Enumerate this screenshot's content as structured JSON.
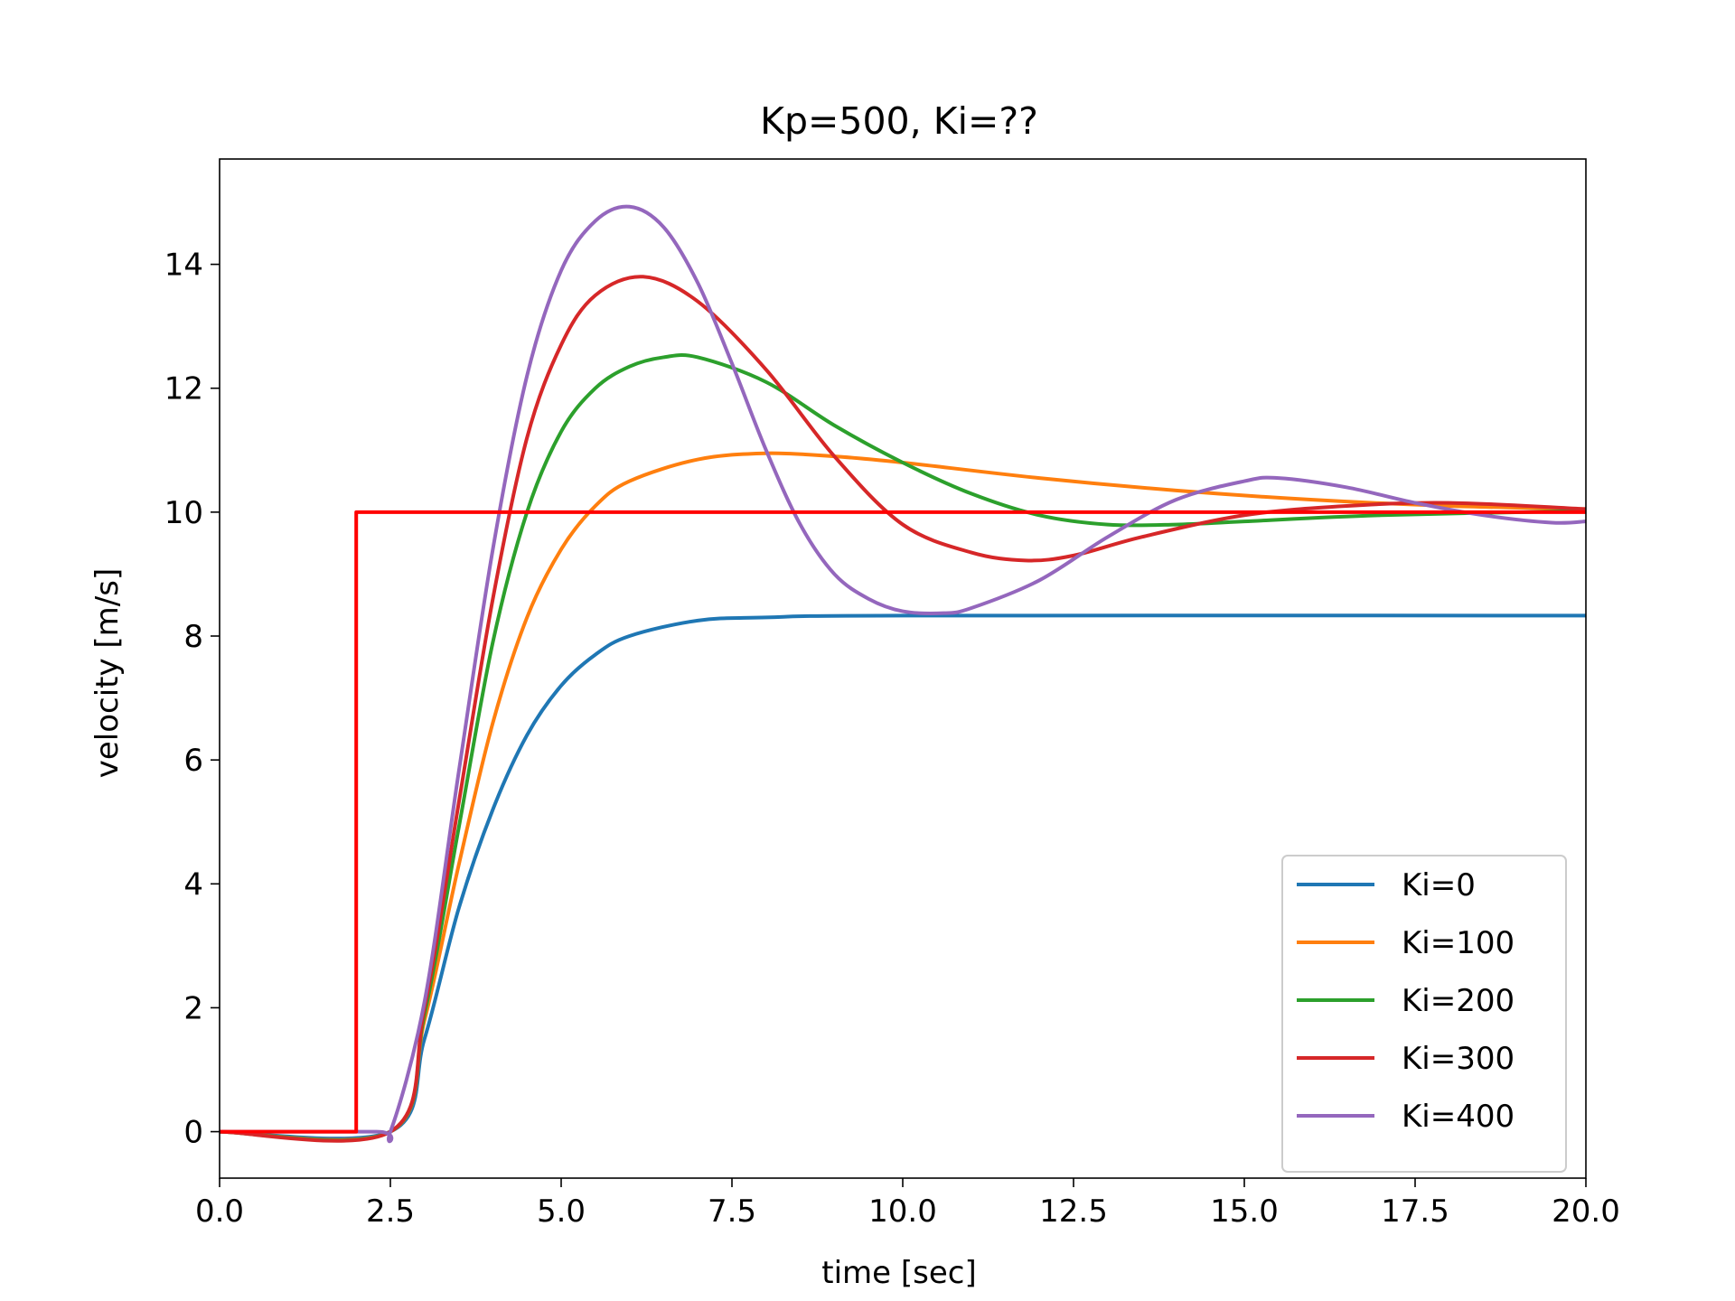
{
  "chart_data": {
    "type": "line",
    "title": "Kp=500, Ki=??",
    "xlabel": "time [sec]",
    "ylabel": "velocity [m/s]",
    "xlim": [
      0,
      20
    ],
    "ylim": [
      -0.75,
      15.7
    ],
    "xticks": [
      "0.0",
      "2.5",
      "5.0",
      "7.5",
      "10.0",
      "12.5",
      "15.0",
      "17.5",
      "20.0"
    ],
    "yticks": [
      "0",
      "2",
      "4",
      "6",
      "8",
      "10",
      "12",
      "14"
    ],
    "grid": false,
    "legend_position": "bottom-right",
    "series": [
      {
        "name": "Ki=0",
        "color": "#1f77b4",
        "points": [
          [
            0,
            0
          ],
          [
            2.5,
            0
          ],
          [
            3,
            1.5
          ],
          [
            3.5,
            3.6
          ],
          [
            4,
            5.2
          ],
          [
            4.5,
            6.4
          ],
          [
            5,
            7.2
          ],
          [
            5.5,
            7.7
          ],
          [
            6,
            8.0
          ],
          [
            7,
            8.25
          ],
          [
            8,
            8.3
          ],
          [
            10,
            8.33
          ],
          [
            20,
            8.33
          ]
        ]
      },
      {
        "name": "Ki=100",
        "color": "#ff7f0e",
        "points": [
          [
            0,
            0
          ],
          [
            2.5,
            0
          ],
          [
            3,
            1.8
          ],
          [
            3.5,
            4.3
          ],
          [
            4,
            6.6
          ],
          [
            4.5,
            8.3
          ],
          [
            5,
            9.4
          ],
          [
            5.5,
            10.1
          ],
          [
            6,
            10.5
          ],
          [
            7,
            10.85
          ],
          [
            8,
            10.95
          ],
          [
            9,
            10.9
          ],
          [
            10,
            10.8
          ],
          [
            12,
            10.55
          ],
          [
            14,
            10.35
          ],
          [
            16,
            10.2
          ],
          [
            18,
            10.1
          ],
          [
            20,
            10.05
          ]
        ]
      },
      {
        "name": "Ki=200",
        "color": "#2ca02c",
        "points": [
          [
            0,
            0
          ],
          [
            2.5,
            0
          ],
          [
            3,
            1.9
          ],
          [
            3.5,
            4.9
          ],
          [
            4,
            7.9
          ],
          [
            4.5,
            10.0
          ],
          [
            5,
            11.3
          ],
          [
            5.5,
            12.0
          ],
          [
            6,
            12.35
          ],
          [
            6.5,
            12.5
          ],
          [
            7,
            12.5
          ],
          [
            8,
            12.1
          ],
          [
            9,
            11.4
          ],
          [
            10,
            10.8
          ],
          [
            11,
            10.3
          ],
          [
            12,
            9.95
          ],
          [
            13,
            9.8
          ],
          [
            14,
            9.8
          ],
          [
            15,
            9.85
          ],
          [
            17,
            9.95
          ],
          [
            20,
            10.02
          ]
        ]
      },
      {
        "name": "Ki=300",
        "color": "#d62728",
        "points": [
          [
            0,
            0
          ],
          [
            2.5,
            0
          ],
          [
            3,
            2.0
          ],
          [
            3.5,
            5.3
          ],
          [
            4,
            8.6
          ],
          [
            4.5,
            11.2
          ],
          [
            5,
            12.7
          ],
          [
            5.5,
            13.5
          ],
          [
            6.2,
            13.8
          ],
          [
            7,
            13.4
          ],
          [
            8,
            12.3
          ],
          [
            9,
            10.9
          ],
          [
            10,
            9.8
          ],
          [
            11,
            9.35
          ],
          [
            11.8,
            9.22
          ],
          [
            12.5,
            9.3
          ],
          [
            13.5,
            9.6
          ],
          [
            15,
            9.95
          ],
          [
            16.5,
            10.1
          ],
          [
            18,
            10.15
          ],
          [
            20,
            10.05
          ]
        ]
      },
      {
        "name": "Ki=400",
        "color": "#9467bd",
        "points": [
          [
            0,
            0
          ],
          [
            2.3,
            0
          ],
          [
            2.5,
            0
          ],
          [
            3,
            2.1
          ],
          [
            3.5,
            5.8
          ],
          [
            4,
            9.4
          ],
          [
            4.5,
            12.2
          ],
          [
            5,
            13.9
          ],
          [
            5.5,
            14.7
          ],
          [
            6,
            14.93
          ],
          [
            6.5,
            14.6
          ],
          [
            7,
            13.7
          ],
          [
            7.5,
            12.4
          ],
          [
            8,
            11.0
          ],
          [
            8.5,
            9.8
          ],
          [
            9,
            9.0
          ],
          [
            9.5,
            8.6
          ],
          [
            10,
            8.4
          ],
          [
            10.6,
            8.37
          ],
          [
            11,
            8.45
          ],
          [
            12,
            8.9
          ],
          [
            13,
            9.6
          ],
          [
            14,
            10.2
          ],
          [
            15,
            10.5
          ],
          [
            15.5,
            10.55
          ],
          [
            16.5,
            10.4
          ],
          [
            17.5,
            10.15
          ],
          [
            18.5,
            9.95
          ],
          [
            19.5,
            9.83
          ],
          [
            20,
            9.85
          ]
        ]
      },
      {
        "name": "setpoint",
        "color": "#ff0000",
        "points": [
          [
            0,
            0
          ],
          [
            2,
            0
          ],
          [
            2,
            10
          ],
          [
            20,
            10
          ]
        ]
      }
    ]
  }
}
